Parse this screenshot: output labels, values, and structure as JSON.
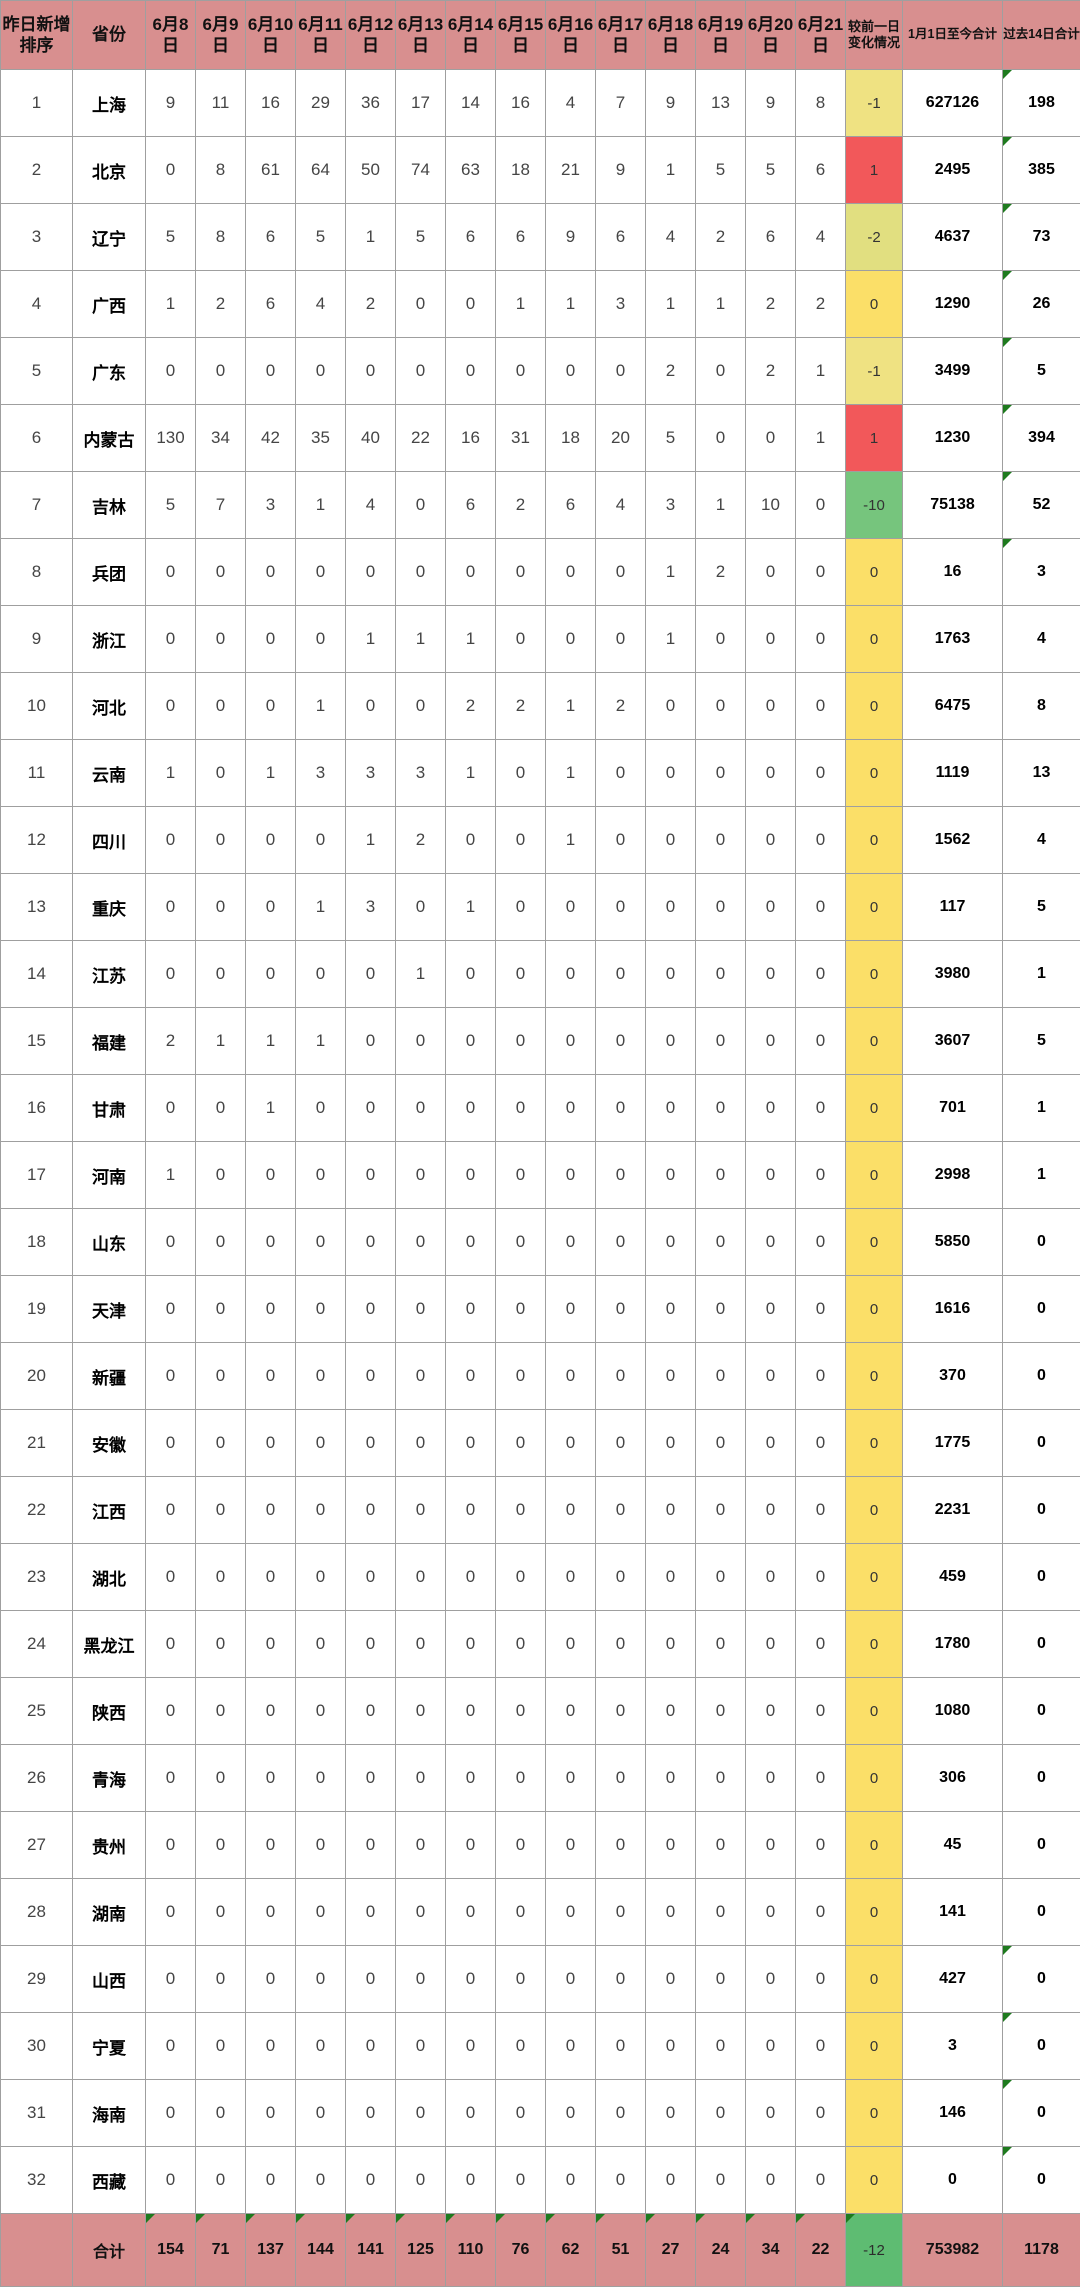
{
  "colors": {
    "header_bg": "#D88F8F",
    "border": "#9F9F9F",
    "marker_green": "#1E7A1E",
    "scale_red": "#F2585A",
    "scale_yellow": "#FBDF68",
    "scale_green": "#5EBC72"
  },
  "table": {
    "header": {
      "rank_label": "昨日新增排序",
      "province_label": "省份",
      "dates": [
        "6月8日",
        "6月9日",
        "6月10日",
        "6月11日",
        "6月12日",
        "6月13日",
        "6月14日",
        "6月15日",
        "6月16日",
        "6月17日",
        "6月18日",
        "6月19日",
        "6月20日",
        "6月21日"
      ],
      "change_label": "较前一日变化情况",
      "total_label": "1月1日至今合计",
      "last14_label": "过去14日合计"
    },
    "rows": [
      {
        "rank": 1,
        "province": "上海",
        "daily": [
          9,
          11,
          16,
          29,
          36,
          17,
          14,
          16,
          4,
          7,
          9,
          13,
          9,
          8
        ],
        "change": -1,
        "change_color": "#EFE282",
        "total": 627126,
        "last14": 198,
        "marker": true
      },
      {
        "rank": 2,
        "province": "北京",
        "daily": [
          0,
          8,
          61,
          64,
          50,
          74,
          63,
          18,
          21,
          9,
          1,
          5,
          5,
          6
        ],
        "change": 1,
        "change_color": "#F2585A",
        "total": 2495,
        "last14": 385,
        "marker": true
      },
      {
        "rank": 3,
        "province": "辽宁",
        "daily": [
          5,
          8,
          6,
          5,
          1,
          5,
          6,
          6,
          9,
          6,
          4,
          2,
          6,
          4
        ],
        "change": -2,
        "change_color": "#E1DF80",
        "total": 4637,
        "last14": 73,
        "marker": true
      },
      {
        "rank": 4,
        "province": "广西",
        "daily": [
          1,
          2,
          6,
          4,
          2,
          0,
          0,
          1,
          1,
          3,
          1,
          1,
          2,
          2
        ],
        "change": 0,
        "change_color": "#FBDF68",
        "total": 1290,
        "last14": 26,
        "marker": true
      },
      {
        "rank": 5,
        "province": "广东",
        "daily": [
          0,
          0,
          0,
          0,
          0,
          0,
          0,
          0,
          0,
          0,
          2,
          0,
          2,
          1
        ],
        "change": -1,
        "change_color": "#EFE282",
        "total": 3499,
        "last14": 5,
        "marker": true
      },
      {
        "rank": 6,
        "province": "内蒙古",
        "daily": [
          130,
          34,
          42,
          35,
          40,
          22,
          16,
          31,
          18,
          20,
          5,
          0,
          0,
          1
        ],
        "change": 1,
        "change_color": "#F2585A",
        "total": 1230,
        "last14": 394,
        "marker": true
      },
      {
        "rank": 7,
        "province": "吉林",
        "daily": [
          5,
          7,
          3,
          1,
          4,
          0,
          6,
          2,
          6,
          4,
          3,
          1,
          10,
          0
        ],
        "change": -10,
        "change_color": "#76C57D",
        "total": 75138,
        "last14": 52,
        "marker": true
      },
      {
        "rank": 8,
        "province": "兵团",
        "daily": [
          0,
          0,
          0,
          0,
          0,
          0,
          0,
          0,
          0,
          0,
          1,
          2,
          0,
          0
        ],
        "change": 0,
        "change_color": "#FBDF68",
        "total": 16,
        "last14": 3,
        "marker": true
      },
      {
        "rank": 9,
        "province": "浙江",
        "daily": [
          0,
          0,
          0,
          0,
          1,
          1,
          1,
          0,
          0,
          0,
          1,
          0,
          0,
          0
        ],
        "change": 0,
        "change_color": "#FBDF68",
        "total": 1763,
        "last14": 4,
        "marker": false
      },
      {
        "rank": 10,
        "province": "河北",
        "daily": [
          0,
          0,
          0,
          1,
          0,
          0,
          2,
          2,
          1,
          2,
          0,
          0,
          0,
          0
        ],
        "change": 0,
        "change_color": "#FBDF68",
        "total": 6475,
        "last14": 8,
        "marker": false
      },
      {
        "rank": 11,
        "province": "云南",
        "daily": [
          1,
          0,
          1,
          3,
          3,
          3,
          1,
          0,
          1,
          0,
          0,
          0,
          0,
          0
        ],
        "change": 0,
        "change_color": "#FBDF68",
        "total": 1119,
        "last14": 13,
        "marker": false
      },
      {
        "rank": 12,
        "province": "四川",
        "daily": [
          0,
          0,
          0,
          0,
          1,
          2,
          0,
          0,
          1,
          0,
          0,
          0,
          0,
          0
        ],
        "change": 0,
        "change_color": "#FBDF68",
        "total": 1562,
        "last14": 4,
        "marker": false
      },
      {
        "rank": 13,
        "province": "重庆",
        "daily": [
          0,
          0,
          0,
          1,
          3,
          0,
          1,
          0,
          0,
          0,
          0,
          0,
          0,
          0
        ],
        "change": 0,
        "change_color": "#FBDF68",
        "total": 117,
        "last14": 5,
        "marker": false
      },
      {
        "rank": 14,
        "province": "江苏",
        "daily": [
          0,
          0,
          0,
          0,
          0,
          1,
          0,
          0,
          0,
          0,
          0,
          0,
          0,
          0
        ],
        "change": 0,
        "change_color": "#FBDF68",
        "total": 3980,
        "last14": 1,
        "marker": false
      },
      {
        "rank": 15,
        "province": "福建",
        "daily": [
          2,
          1,
          1,
          1,
          0,
          0,
          0,
          0,
          0,
          0,
          0,
          0,
          0,
          0
        ],
        "change": 0,
        "change_color": "#FBDF68",
        "total": 3607,
        "last14": 5,
        "marker": false
      },
      {
        "rank": 16,
        "province": "甘肃",
        "daily": [
          0,
          0,
          1,
          0,
          0,
          0,
          0,
          0,
          0,
          0,
          0,
          0,
          0,
          0
        ],
        "change": 0,
        "change_color": "#FBDF68",
        "total": 701,
        "last14": 1,
        "marker": false
      },
      {
        "rank": 17,
        "province": "河南",
        "daily": [
          1,
          0,
          0,
          0,
          0,
          0,
          0,
          0,
          0,
          0,
          0,
          0,
          0,
          0
        ],
        "change": 0,
        "change_color": "#FBDF68",
        "total": 2998,
        "last14": 1,
        "marker": false
      },
      {
        "rank": 18,
        "province": "山东",
        "daily": [
          0,
          0,
          0,
          0,
          0,
          0,
          0,
          0,
          0,
          0,
          0,
          0,
          0,
          0
        ],
        "change": 0,
        "change_color": "#FBDF68",
        "total": 5850,
        "last14": 0,
        "marker": false
      },
      {
        "rank": 19,
        "province": "天津",
        "daily": [
          0,
          0,
          0,
          0,
          0,
          0,
          0,
          0,
          0,
          0,
          0,
          0,
          0,
          0
        ],
        "change": 0,
        "change_color": "#FBDF68",
        "total": 1616,
        "last14": 0,
        "marker": false
      },
      {
        "rank": 20,
        "province": "新疆",
        "daily": [
          0,
          0,
          0,
          0,
          0,
          0,
          0,
          0,
          0,
          0,
          0,
          0,
          0,
          0
        ],
        "change": 0,
        "change_color": "#FBDF68",
        "total": 370,
        "last14": 0,
        "marker": false
      },
      {
        "rank": 21,
        "province": "安徽",
        "daily": [
          0,
          0,
          0,
          0,
          0,
          0,
          0,
          0,
          0,
          0,
          0,
          0,
          0,
          0
        ],
        "change": 0,
        "change_color": "#FBDF68",
        "total": 1775,
        "last14": 0,
        "marker": false
      },
      {
        "rank": 22,
        "province": "江西",
        "daily": [
          0,
          0,
          0,
          0,
          0,
          0,
          0,
          0,
          0,
          0,
          0,
          0,
          0,
          0
        ],
        "change": 0,
        "change_color": "#FBDF68",
        "total": 2231,
        "last14": 0,
        "marker": false
      },
      {
        "rank": 23,
        "province": "湖北",
        "daily": [
          0,
          0,
          0,
          0,
          0,
          0,
          0,
          0,
          0,
          0,
          0,
          0,
          0,
          0
        ],
        "change": 0,
        "change_color": "#FBDF68",
        "total": 459,
        "last14": 0,
        "marker": false
      },
      {
        "rank": 24,
        "province": "黑龙江",
        "daily": [
          0,
          0,
          0,
          0,
          0,
          0,
          0,
          0,
          0,
          0,
          0,
          0,
          0,
          0
        ],
        "change": 0,
        "change_color": "#FBDF68",
        "total": 1780,
        "last14": 0,
        "marker": false
      },
      {
        "rank": 25,
        "province": "陕西",
        "daily": [
          0,
          0,
          0,
          0,
          0,
          0,
          0,
          0,
          0,
          0,
          0,
          0,
          0,
          0
        ],
        "change": 0,
        "change_color": "#FBDF68",
        "total": 1080,
        "last14": 0,
        "marker": false
      },
      {
        "rank": 26,
        "province": "青海",
        "daily": [
          0,
          0,
          0,
          0,
          0,
          0,
          0,
          0,
          0,
          0,
          0,
          0,
          0,
          0
        ],
        "change": 0,
        "change_color": "#FBDF68",
        "total": 306,
        "last14": 0,
        "marker": false
      },
      {
        "rank": 27,
        "province": "贵州",
        "daily": [
          0,
          0,
          0,
          0,
          0,
          0,
          0,
          0,
          0,
          0,
          0,
          0,
          0,
          0
        ],
        "change": 0,
        "change_color": "#FBDF68",
        "total": 45,
        "last14": 0,
        "marker": false
      },
      {
        "rank": 28,
        "province": "湖南",
        "daily": [
          0,
          0,
          0,
          0,
          0,
          0,
          0,
          0,
          0,
          0,
          0,
          0,
          0,
          0
        ],
        "change": 0,
        "change_color": "#FBDF68",
        "total": 141,
        "last14": 0,
        "marker": false
      },
      {
        "rank": 29,
        "province": "山西",
        "daily": [
          0,
          0,
          0,
          0,
          0,
          0,
          0,
          0,
          0,
          0,
          0,
          0,
          0,
          0
        ],
        "change": 0,
        "change_color": "#FBDF68",
        "total": 427,
        "last14": 0,
        "marker": true
      },
      {
        "rank": 30,
        "province": "宁夏",
        "daily": [
          0,
          0,
          0,
          0,
          0,
          0,
          0,
          0,
          0,
          0,
          0,
          0,
          0,
          0
        ],
        "change": 0,
        "change_color": "#FBDF68",
        "total": 3,
        "last14": 0,
        "marker": true
      },
      {
        "rank": 31,
        "province": "海南",
        "daily": [
          0,
          0,
          0,
          0,
          0,
          0,
          0,
          0,
          0,
          0,
          0,
          0,
          0,
          0
        ],
        "change": 0,
        "change_color": "#FBDF68",
        "total": 146,
        "last14": 0,
        "marker": true
      },
      {
        "rank": 32,
        "province": "西藏",
        "daily": [
          0,
          0,
          0,
          0,
          0,
          0,
          0,
          0,
          0,
          0,
          0,
          0,
          0,
          0
        ],
        "change": 0,
        "change_color": "#FBDF68",
        "total": 0,
        "last14": 0,
        "marker": true
      }
    ],
    "total_row": {
      "rank_label": "",
      "label": "合计",
      "daily": [
        154,
        71,
        137,
        144,
        141,
        125,
        110,
        76,
        62,
        51,
        27,
        24,
        34,
        22
      ],
      "change": -12,
      "change_color": "#5EBC72",
      "total": 753982,
      "last14": 1178,
      "daily_markers": true,
      "change_marker": true
    }
  }
}
